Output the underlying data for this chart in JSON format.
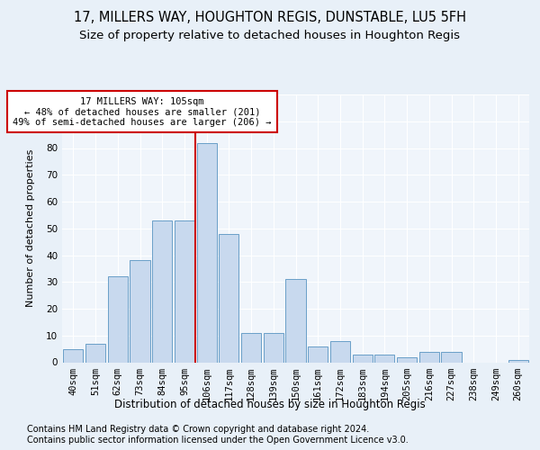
{
  "title1": "17, MILLERS WAY, HOUGHTON REGIS, DUNSTABLE, LU5 5FH",
  "title2": "Size of property relative to detached houses in Houghton Regis",
  "xlabel": "Distribution of detached houses by size in Houghton Regis",
  "ylabel": "Number of detached properties",
  "categories": [
    "40sqm",
    "51sqm",
    "62sqm",
    "73sqm",
    "84sqm",
    "95sqm",
    "106sqm",
    "117sqm",
    "128sqm",
    "139sqm",
    "150sqm",
    "161sqm",
    "172sqm",
    "183sqm",
    "194sqm",
    "205sqm",
    "216sqm",
    "227sqm",
    "238sqm",
    "249sqm",
    "260sqm"
  ],
  "values": [
    5,
    7,
    32,
    38,
    53,
    53,
    82,
    48,
    11,
    11,
    31,
    6,
    8,
    3,
    3,
    2,
    4,
    4,
    0,
    0,
    1
  ],
  "bar_color": "#c8d9ee",
  "bar_edgecolor": "#6a9fc8",
  "vline_x": 5.5,
  "vline_color": "#cc0000",
  "annotation_line1": "17 MILLERS WAY: 105sqm",
  "annotation_line2": "← 48% of detached houses are smaller (201)",
  "annotation_line3": "49% of semi-detached houses are larger (206) →",
  "annotation_box_color": "#ffffff",
  "annotation_box_edgecolor": "#cc0000",
  "footer1": "Contains HM Land Registry data © Crown copyright and database right 2024.",
  "footer2": "Contains public sector information licensed under the Open Government Licence v3.0.",
  "bg_color": "#e8f0f8",
  "plot_bg_color": "#f0f5fb",
  "grid_color": "#ffffff",
  "ylim": [
    0,
    100
  ],
  "title1_fontsize": 10.5,
  "title2_fontsize": 9.5,
  "xlabel_fontsize": 8.5,
  "ylabel_fontsize": 8,
  "tick_fontsize": 7.5,
  "annotation_fontsize": 7.5,
  "footer_fontsize": 7
}
